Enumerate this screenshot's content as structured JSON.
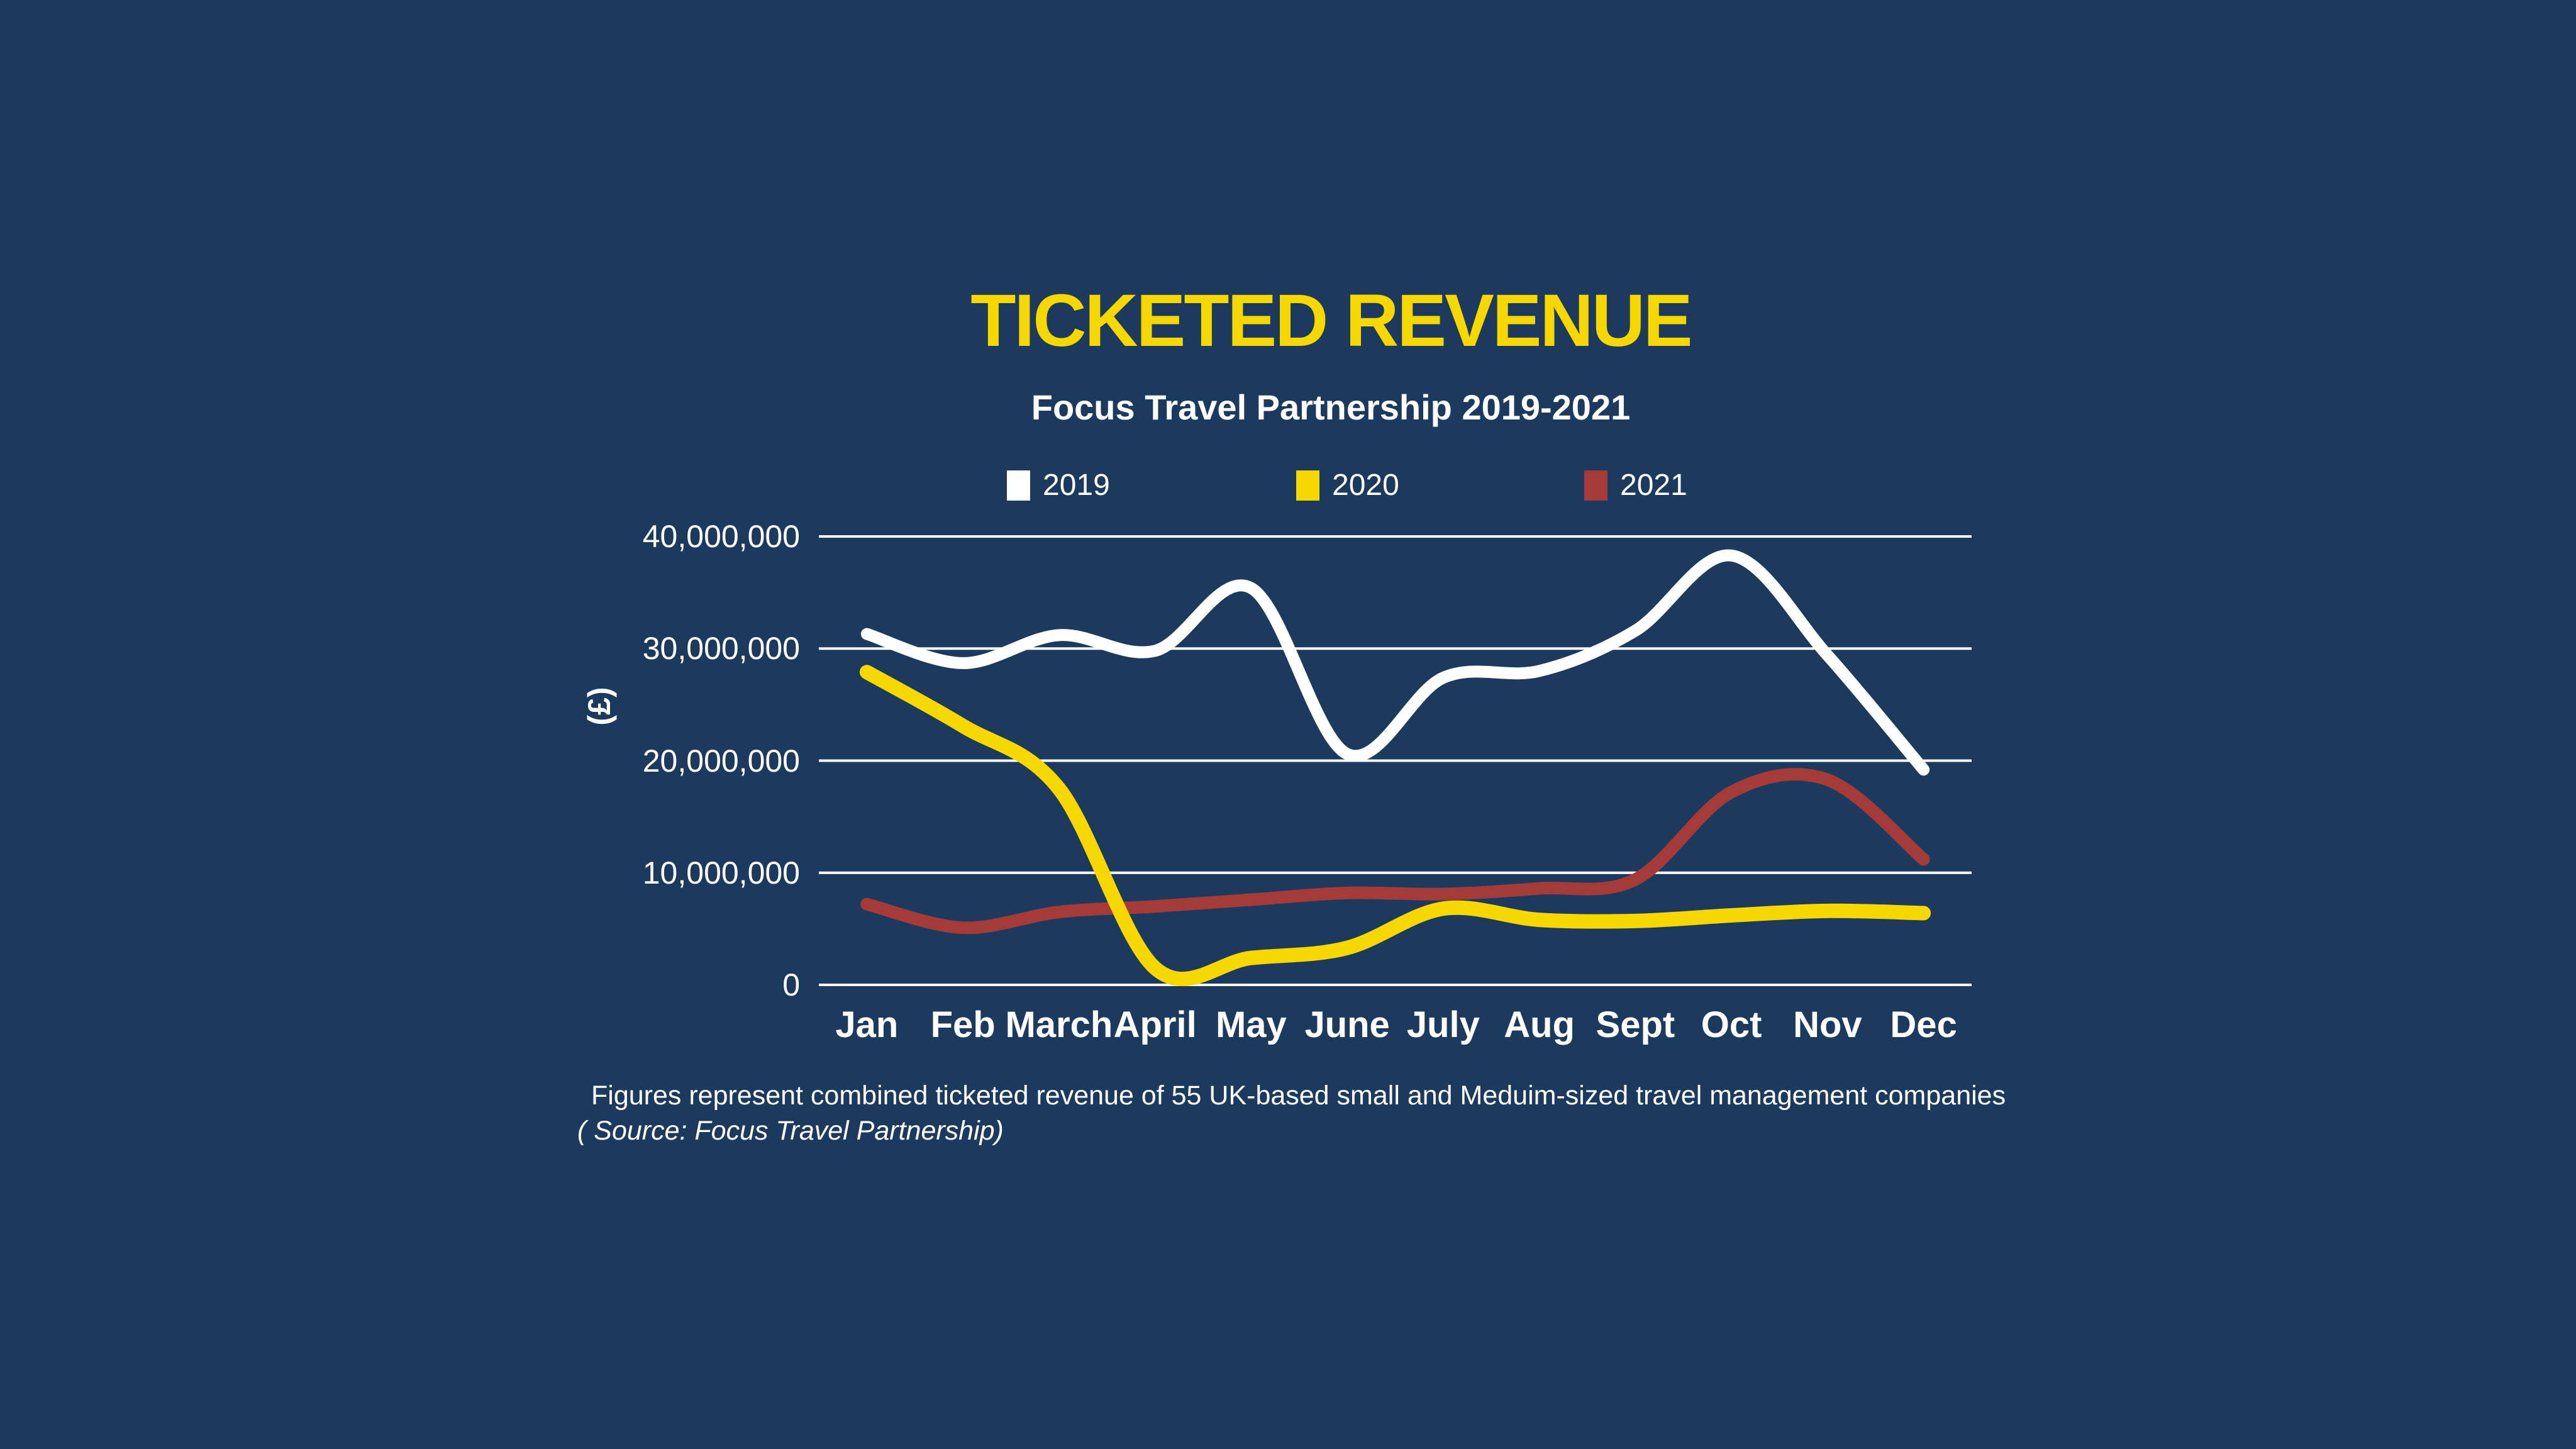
{
  "page": {
    "background_color": "#1C3A5E"
  },
  "header": {
    "title": "TICKETED REVENUE",
    "title_color": "#F7D700",
    "subtitle": "Focus Travel Partnership 2019-2021"
  },
  "legend": [
    {
      "label": "2019",
      "color": "#FFFFFF"
    },
    {
      "label": "2020",
      "color": "#F7D700"
    },
    {
      "label": "2021",
      "color": "#A53B39"
    }
  ],
  "chart_data": {
    "type": "line",
    "title": "TICKETED REVENUE",
    "subtitle": "Focus Travel Partnership 2019-2021",
    "unit_label": "(£)",
    "ylabel": "(£)",
    "xlabel": "",
    "grid": "horizontal",
    "legend_position": "top",
    "ylim": [
      0,
      40000000
    ],
    "categories": [
      "Jan",
      "Feb",
      "March",
      "April",
      "May",
      "June",
      "July",
      "Aug",
      "Sept",
      "Oct",
      "Nov",
      "Dec"
    ],
    "y_ticks": [
      {
        "value": 40000000,
        "label": "40,000,000"
      },
      {
        "value": 30000000,
        "label": "30,000,000"
      },
      {
        "value": 20000000,
        "label": "20,000,000"
      },
      {
        "value": 10000000,
        "label": "10,000,000"
      },
      {
        "value": 0,
        "label": "0"
      }
    ],
    "series": [
      {
        "name": "2019",
        "color": "#FFFFFF",
        "values": [
          31300000,
          28700000,
          31200000,
          29800000,
          35400000,
          20600000,
          27400000,
          28000000,
          31600000,
          38300000,
          29400000,
          19200000
        ]
      },
      {
        "name": "2020",
        "color": "#F7D700",
        "values": [
          27900000,
          23100000,
          17500000,
          1500000,
          2400000,
          3300000,
          6800000,
          5800000,
          5700000,
          6200000,
          6600000,
          6400000
        ]
      },
      {
        "name": "2021",
        "color": "#A53B39",
        "values": [
          7200000,
          5100000,
          6500000,
          7000000,
          7600000,
          8200000,
          8100000,
          8600000,
          9400000,
          17200000,
          18300000,
          11200000
        ]
      }
    ]
  },
  "footnote": {
    "line1": "Figures represent combined ticketed revenue of 55 UK-based small and Meduim-sized travel management companies",
    "line2": "( Source: Focus Travel Partnership)"
  }
}
